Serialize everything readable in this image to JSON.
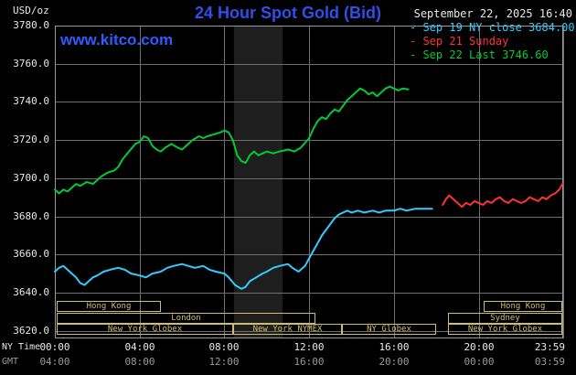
{
  "colors": {
    "background": "#000000",
    "text": "#e8e8e8",
    "muted": "#999999",
    "title": "#2f4fe8",
    "watermark": "#2f5bff",
    "grid": "#6e6e6e",
    "border": "#9a9a9a",
    "session": "#cdbd6e"
  },
  "header": {
    "units": "USD/oz",
    "title": "24 Hour Spot Gold (Bid)",
    "datetime": "September 22, 2025 16:40",
    "watermark": "www.kitco.com"
  },
  "legend": {
    "bullet": "-",
    "items": [
      {
        "label": "Sep 19 NY close 3684.00",
        "color": "#33ccff"
      },
      {
        "label": "Sep 21 Sunday",
        "color": "#ff3333"
      },
      {
        "label": "Sep 22 Last 3746.60",
        "color": "#00cc33"
      }
    ]
  },
  "axes": {
    "ny_label": "NY Time",
    "gmt_label": "GMT",
    "y_ticks": [
      {
        "v": 3780,
        "label": "3780.0"
      },
      {
        "v": 3760,
        "label": "3760.0"
      },
      {
        "v": 3740,
        "label": "3740.0"
      },
      {
        "v": 3720,
        "label": "3720.0"
      },
      {
        "v": 3700,
        "label": "3700.0"
      },
      {
        "v": 3680,
        "label": "3680.0"
      },
      {
        "v": 3660,
        "label": "3660.0"
      },
      {
        "v": 3640,
        "label": "3640.0"
      },
      {
        "v": 3620,
        "label": "3620.0"
      }
    ],
    "x_ticks": [
      {
        "t": 0,
        "ny": "00:00",
        "gmt": "04:00"
      },
      {
        "t": 4,
        "ny": "04:00",
        "gmt": "08:00"
      },
      {
        "t": 8,
        "ny": "08:00",
        "gmt": "12:00"
      },
      {
        "t": 12,
        "ny": "12:00",
        "gmt": "16:00"
      },
      {
        "t": 16,
        "ny": "16:00",
        "gmt": "20:00"
      },
      {
        "t": 20,
        "ny": "20:00",
        "gmt": "00:00"
      },
      {
        "t": 23.983,
        "ny": "23:59",
        "gmt": "03:59"
      }
    ]
  },
  "sessions": {
    "rows": [
      {
        "row": 0,
        "boxes": [
          {
            "label": "Hong Kong",
            "t0": 0.1,
            "t1": 5.0
          },
          {
            "label": "Hong Kong",
            "t0": 20.25,
            "t1": 23.95
          }
        ]
      },
      {
        "row": 1,
        "boxes": [
          {
            "label": "London",
            "t0": 0.1,
            "t1": 12.3
          },
          {
            "label": "Sydney",
            "t0": 18.55,
            "t1": 23.95
          }
        ]
      },
      {
        "row": 2,
        "boxes": [
          {
            "label": "New York Globex",
            "t0": 0.1,
            "t1": 8.42
          },
          {
            "label": "New York NYMEX",
            "t0": 8.42,
            "t1": 13.55
          },
          {
            "label": "NY Globex",
            "t0": 13.55,
            "t1": 18.0
          },
          {
            "label": "New York Globex",
            "t0": 18.55,
            "t1": 23.95
          }
        ]
      }
    ]
  },
  "chart_data": {
    "type": "line",
    "title": "24 Hour Spot Gold (Bid)",
    "ylabel": "USD/oz",
    "x_unit": "hours NY time",
    "xlim": [
      0,
      23.983
    ],
    "ylim": [
      3616,
      3780
    ],
    "y_gridlines": [
      3620,
      3640,
      3660,
      3680,
      3700,
      3720,
      3740,
      3760,
      3780
    ],
    "x_gridlines": [
      0,
      4,
      8,
      12,
      16,
      20,
      23.983
    ],
    "shaded_band": {
      "t0": 8.45,
      "t1": 10.75,
      "color": "#1e1e1e"
    },
    "series": [
      {
        "name": "Sep 19 NY close",
        "color": "#33ccff",
        "close": 3684.0,
        "points": [
          [
            0.0,
            3651
          ],
          [
            0.2,
            3653
          ],
          [
            0.4,
            3654
          ],
          [
            0.6,
            3652
          ],
          [
            0.8,
            3650
          ],
          [
            1.0,
            3648
          ],
          [
            1.2,
            3645
          ],
          [
            1.4,
            3644
          ],
          [
            1.6,
            3646
          ],
          [
            1.8,
            3648
          ],
          [
            2.0,
            3649
          ],
          [
            2.3,
            3651
          ],
          [
            2.6,
            3652
          ],
          [
            3.0,
            3653
          ],
          [
            3.3,
            3652
          ],
          [
            3.6,
            3650
          ],
          [
            4.0,
            3649
          ],
          [
            4.3,
            3648
          ],
          [
            4.6,
            3650
          ],
          [
            5.0,
            3651
          ],
          [
            5.3,
            3653
          ],
          [
            5.6,
            3654
          ],
          [
            6.0,
            3655
          ],
          [
            6.3,
            3654
          ],
          [
            6.6,
            3653
          ],
          [
            7.0,
            3654
          ],
          [
            7.3,
            3652
          ],
          [
            7.6,
            3651
          ],
          [
            8.0,
            3650
          ],
          [
            8.2,
            3648
          ],
          [
            8.5,
            3644
          ],
          [
            8.8,
            3642
          ],
          [
            9.0,
            3643
          ],
          [
            9.2,
            3646
          ],
          [
            9.5,
            3648
          ],
          [
            9.8,
            3650
          ],
          [
            10.0,
            3651
          ],
          [
            10.3,
            3653
          ],
          [
            10.6,
            3654
          ],
          [
            11.0,
            3655
          ],
          [
            11.2,
            3653
          ],
          [
            11.5,
            3651
          ],
          [
            11.8,
            3654
          ],
          [
            12.0,
            3658
          ],
          [
            12.2,
            3662
          ],
          [
            12.4,
            3666
          ],
          [
            12.6,
            3670
          ],
          [
            12.8,
            3673
          ],
          [
            13.0,
            3676
          ],
          [
            13.2,
            3679
          ],
          [
            13.4,
            3681
          ],
          [
            13.6,
            3682
          ],
          [
            13.8,
            3683
          ],
          [
            14.0,
            3682
          ],
          [
            14.3,
            3683
          ],
          [
            14.6,
            3682
          ],
          [
            15.0,
            3683
          ],
          [
            15.3,
            3682
          ],
          [
            15.6,
            3683
          ],
          [
            16.0,
            3683
          ],
          [
            16.3,
            3684
          ],
          [
            16.6,
            3683
          ],
          [
            17.0,
            3684
          ],
          [
            17.4,
            3684
          ],
          [
            17.8,
            3684
          ]
        ]
      },
      {
        "name": "Sep 21 Sunday",
        "color": "#ff3333",
        "points": [
          [
            18.3,
            3686
          ],
          [
            18.45,
            3689
          ],
          [
            18.6,
            3691
          ],
          [
            18.8,
            3689
          ],
          [
            19.0,
            3687
          ],
          [
            19.2,
            3685
          ],
          [
            19.4,
            3687
          ],
          [
            19.6,
            3686
          ],
          [
            19.8,
            3688
          ],
          [
            20.0,
            3687
          ],
          [
            20.2,
            3686
          ],
          [
            20.4,
            3688
          ],
          [
            20.6,
            3687
          ],
          [
            20.8,
            3689
          ],
          [
            21.0,
            3690
          ],
          [
            21.2,
            3688
          ],
          [
            21.4,
            3687
          ],
          [
            21.6,
            3689
          ],
          [
            21.8,
            3688
          ],
          [
            22.0,
            3687
          ],
          [
            22.2,
            3688
          ],
          [
            22.4,
            3690
          ],
          [
            22.6,
            3689
          ],
          [
            22.8,
            3688
          ],
          [
            23.0,
            3690
          ],
          [
            23.2,
            3689
          ],
          [
            23.4,
            3691
          ],
          [
            23.6,
            3692
          ],
          [
            23.8,
            3694
          ],
          [
            23.95,
            3697
          ]
        ]
      },
      {
        "name": "Sep 22 Last",
        "color": "#00cc33",
        "last": 3746.6,
        "points": [
          [
            0.0,
            3694
          ],
          [
            0.2,
            3692
          ],
          [
            0.4,
            3694
          ],
          [
            0.6,
            3693
          ],
          [
            0.8,
            3695
          ],
          [
            1.0,
            3697
          ],
          [
            1.2,
            3696
          ],
          [
            1.5,
            3698
          ],
          [
            1.8,
            3697
          ],
          [
            2.0,
            3699
          ],
          [
            2.2,
            3701
          ],
          [
            2.5,
            3703
          ],
          [
            2.8,
            3704
          ],
          [
            3.0,
            3706
          ],
          [
            3.2,
            3710
          ],
          [
            3.5,
            3714
          ],
          [
            3.8,
            3718
          ],
          [
            4.0,
            3719
          ],
          [
            4.2,
            3722
          ],
          [
            4.4,
            3721
          ],
          [
            4.6,
            3717
          ],
          [
            4.8,
            3715
          ],
          [
            5.0,
            3714
          ],
          [
            5.2,
            3716
          ],
          [
            5.5,
            3718
          ],
          [
            5.8,
            3716
          ],
          [
            6.0,
            3715
          ],
          [
            6.2,
            3717
          ],
          [
            6.5,
            3720
          ],
          [
            6.8,
            3722
          ],
          [
            7.0,
            3721
          ],
          [
            7.2,
            3722
          ],
          [
            7.5,
            3723
          ],
          [
            7.8,
            3724
          ],
          [
            8.0,
            3725
          ],
          [
            8.2,
            3724
          ],
          [
            8.4,
            3720
          ],
          [
            8.6,
            3712
          ],
          [
            8.8,
            3709
          ],
          [
            9.0,
            3708
          ],
          [
            9.2,
            3712
          ],
          [
            9.4,
            3714
          ],
          [
            9.6,
            3712
          ],
          [
            9.8,
            3713
          ],
          [
            10.0,
            3714
          ],
          [
            10.3,
            3713
          ],
          [
            10.6,
            3714
          ],
          [
            11.0,
            3715
          ],
          [
            11.3,
            3714
          ],
          [
            11.6,
            3716
          ],
          [
            12.0,
            3721
          ],
          [
            12.2,
            3726
          ],
          [
            12.4,
            3730
          ],
          [
            12.6,
            3732
          ],
          [
            12.8,
            3731
          ],
          [
            13.0,
            3734
          ],
          [
            13.2,
            3736
          ],
          [
            13.4,
            3735
          ],
          [
            13.6,
            3738
          ],
          [
            13.8,
            3741
          ],
          [
            14.0,
            3743
          ],
          [
            14.2,
            3745
          ],
          [
            14.4,
            3747
          ],
          [
            14.6,
            3746
          ],
          [
            14.8,
            3744
          ],
          [
            15.0,
            3745
          ],
          [
            15.2,
            3743
          ],
          [
            15.4,
            3745
          ],
          [
            15.6,
            3747
          ],
          [
            15.8,
            3748
          ],
          [
            16.0,
            3747
          ],
          [
            16.2,
            3746
          ],
          [
            16.4,
            3747
          ],
          [
            16.67,
            3746.6
          ]
        ]
      }
    ]
  }
}
